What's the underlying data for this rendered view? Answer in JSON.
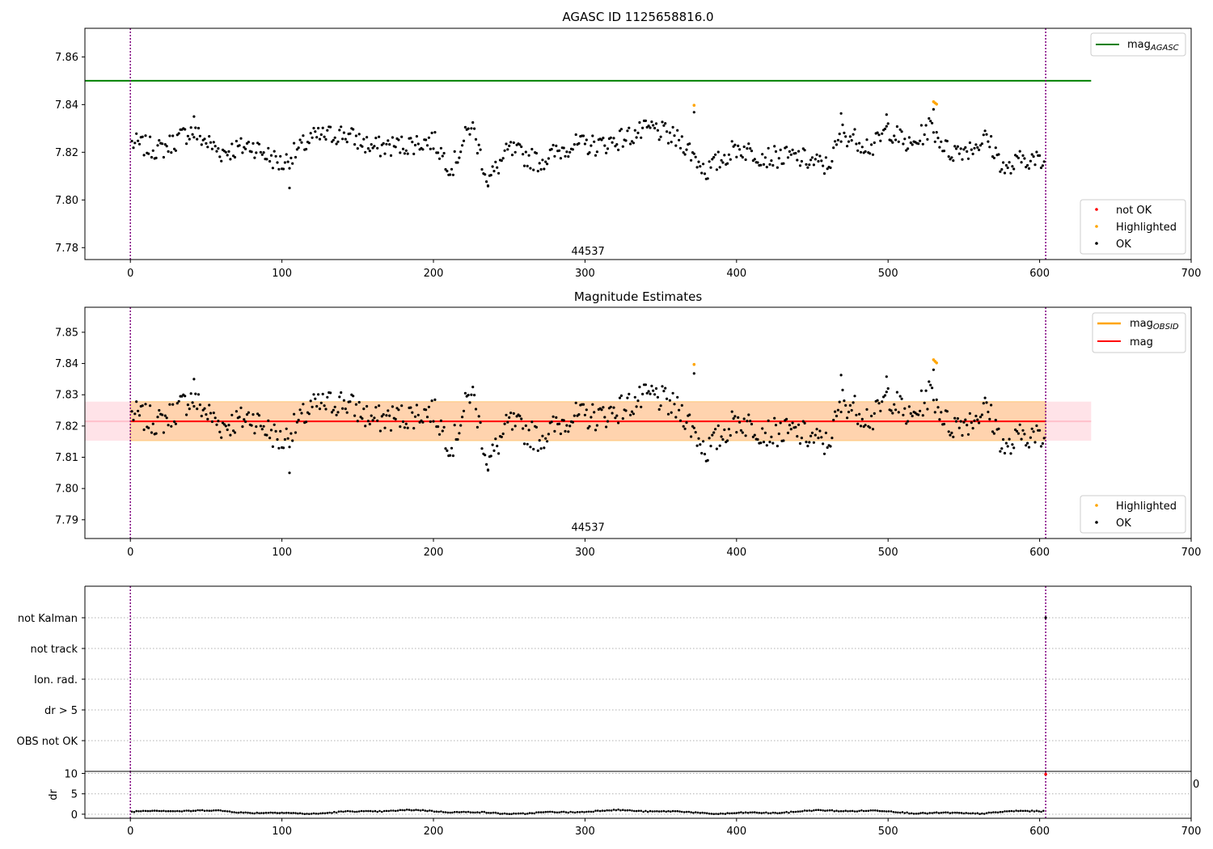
{
  "chart_data": [
    {
      "type": "scatter",
      "title": "AGASC ID 1125658816.0",
      "xlabel": "",
      "ylabel": "",
      "xlim": [
        -30,
        700
      ],
      "ylim": [
        7.775,
        7.872
      ],
      "xticks": [
        0,
        100,
        200,
        300,
        400,
        500,
        600,
        700
      ],
      "yticks": [
        7.78,
        7.8,
        7.82,
        7.84,
        7.86
      ],
      "ytick_decimals": 2,
      "annotation": {
        "text": "44537",
        "x": 302,
        "y": 7.777
      },
      "vlines": [
        0,
        604
      ],
      "vline_color": "#800080",
      "hline": {
        "name": "mag_AGASC",
        "y": 7.85,
        "x_end": 634,
        "color": "#008000"
      },
      "legend_lines": [
        {
          "base": "mag",
          "sub": "AGASC",
          "color": "#008000"
        }
      ],
      "legend_points": [
        {
          "label": "not OK",
          "color": "#ff0000"
        },
        {
          "label": "Highlighted",
          "color": "#ffa500"
        },
        {
          "label": "OK",
          "color": "#000000"
        }
      ],
      "series": [
        {
          "name": "not OK",
          "color": "#ff0000",
          "points": []
        },
        {
          "name": "Highlighted",
          "color": "#ffa500",
          "points": [
            [
              372,
              7.8397
            ],
            [
              530,
              7.8412
            ],
            [
              531,
              7.8407
            ],
            [
              532,
              7.8402
            ]
          ]
        },
        {
          "name": "OK",
          "color": "#000000",
          "points": []
        }
      ]
    },
    {
      "type": "scatter",
      "title": "Magnitude Estimates",
      "xlabel": "",
      "ylabel": "",
      "xlim": [
        -30,
        700
      ],
      "ylim": [
        7.784,
        7.858
      ],
      "xticks": [
        0,
        100,
        200,
        300,
        400,
        500,
        600,
        700
      ],
      "yticks": [
        7.79,
        7.8,
        7.81,
        7.82,
        7.83,
        7.84,
        7.85
      ],
      "ytick_decimals": 2,
      "annotation": {
        "text": "44537",
        "x": 302,
        "y": 7.7865
      },
      "vlines": [
        0,
        604
      ],
      "vline_color": "#800080",
      "mag": 7.8215,
      "mag_band": [
        7.8153,
        7.8278
      ],
      "band_x_end": 634,
      "legend_lines": [
        {
          "base": "mag",
          "sub": "OBSID",
          "color": "#ffa500"
        },
        {
          "base": "mag",
          "sub": "",
          "color": "#ff0000"
        }
      ],
      "legend_points": [
        {
          "label": "Highlighted",
          "color": "#ffa500"
        },
        {
          "label": "OK",
          "color": "#000000"
        }
      ],
      "series": [
        {
          "name": "Highlighted",
          "color": "#ffa500",
          "points": [
            [
              372,
              7.8397
            ],
            [
              530,
              7.8412
            ],
            [
              531,
              7.8407
            ],
            [
              532,
              7.8402
            ]
          ]
        },
        {
          "name": "OK",
          "color": "#000000",
          "points": []
        }
      ]
    },
    {
      "type": "scatter",
      "xlim": [
        -30,
        700
      ],
      "flags": [
        "not Kalman",
        "not track",
        "Ion. rad.",
        "dr > 5",
        "OBS not OK"
      ],
      "flag_markers": [
        {
          "flag": "not Kalman",
          "x": 604
        }
      ],
      "vlines": [
        0,
        604
      ]
    },
    {
      "type": "scatter",
      "xlim": [
        -30,
        700
      ],
      "ylim": [
        -1,
        10.5
      ],
      "ylabel": "dr",
      "yticks": [
        0,
        5,
        10
      ],
      "xticks": [
        0,
        100,
        200,
        300,
        400,
        500,
        600,
        700
      ],
      "stray_tick_label": "0",
      "vlines": [
        0,
        604
      ],
      "series": [
        {
          "name": "dr",
          "color": "#000000",
          "points": []
        },
        {
          "name": "dr high",
          "color": "#ff0000",
          "points": [
            [
              604,
              9.8
            ]
          ]
        }
      ]
    }
  ]
}
